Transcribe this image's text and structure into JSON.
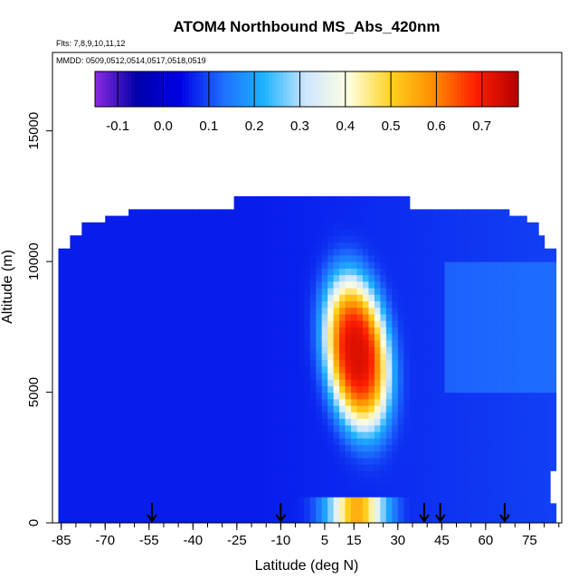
{
  "chart_data": {
    "type": "heatmap",
    "title": "ATOM4 Northbound MS_Abs_420nm",
    "flights_note": "Flts: 7,8,9,10,11,12",
    "dates_note": "MMDD: 0509,0512,0514,0517,0518,0519",
    "xlabel": "Latitude (deg N)",
    "ylabel": "Altitude (m)",
    "xlim": [
      -88,
      86
    ],
    "ylim": [
      0,
      18000
    ],
    "x_ticks": [
      "-85",
      "-70",
      "-55",
      "-40",
      "-25",
      "-10",
      "5",
      "15",
      "30",
      "45",
      "60",
      "75"
    ],
    "x_tick_values": [
      -85,
      -70,
      -55,
      -40,
      -25,
      -10,
      5,
      15,
      30,
      45,
      60,
      75
    ],
    "y_ticks": [
      "0",
      "5000",
      "10000",
      "15000"
    ],
    "y_tick_values": [
      0,
      5000,
      10000,
      15000
    ],
    "colorbar": {
      "range": [
        -0.15,
        0.78
      ],
      "ticks": [
        "-0.1",
        "0.0",
        "0.1",
        "0.2",
        "0.3",
        "0.4",
        "0.5",
        "0.6",
        "0.7"
      ],
      "tick_values": [
        -0.1,
        0.0,
        0.1,
        0.2,
        0.3,
        0.4,
        0.5,
        0.6,
        0.7
      ],
      "colors": [
        "#8a2be2",
        "#0000a8",
        "#0000e6",
        "#1e6cff",
        "#1eb4ff",
        "#cfe6ff",
        "#ffffe0",
        "#ffd21e",
        "#ff8c00",
        "#ff1e00",
        "#b40000"
      ]
    },
    "profile_arrows_lat": [
      -54,
      -10,
      39,
      44.5,
      66.5
    ],
    "background_value": 0.06,
    "plume": {
      "center_lat": 16,
      "center_alt": 6500,
      "peak_value": 0.72,
      "lat_halfwidth": 11,
      "alt_halfheight": 3000
    },
    "surface_plume": {
      "center_lat": 16,
      "alt": 200,
      "peak_value": 0.55,
      "lat_halfwidth": 12
    },
    "data_extent": [
      {
        "lat_min": -86,
        "lat_max": 84,
        "alt_min": 0,
        "alt_max": 800
      },
      {
        "lat_min": -86,
        "lat_max": 82,
        "alt_min": 800,
        "alt_max": 2000
      },
      {
        "lat_min": -86,
        "lat_max": 83,
        "alt_min": 2000,
        "alt_max": 9500
      },
      {
        "lat_min": -86,
        "lat_max": 83,
        "alt_min": 9500,
        "alt_max": 10500
      },
      {
        "lat_min": -82,
        "lat_max": 80,
        "alt_min": 10500,
        "alt_max": 11000
      },
      {
        "lat_min": -78,
        "lat_max": 78,
        "alt_min": 11000,
        "alt_max": 11500
      },
      {
        "lat_min": -70,
        "lat_max": 74,
        "alt_min": 11500,
        "alt_max": 11800
      },
      {
        "lat_min": -62,
        "lat_max": 68,
        "alt_min": 11800,
        "alt_max": 12000
      },
      {
        "lat_min": -26,
        "lat_max": 33,
        "alt_min": 12000,
        "alt_max": 12500
      }
    ]
  }
}
